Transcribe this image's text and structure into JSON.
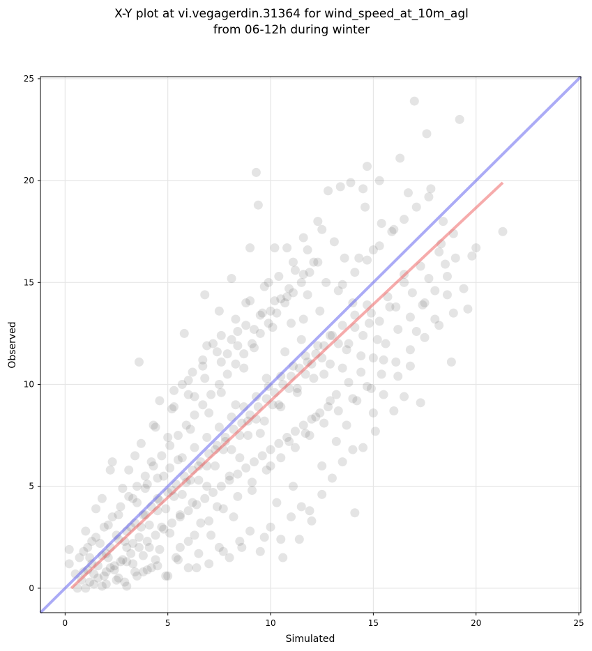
{
  "chart_data": {
    "type": "scatter",
    "title_lines": [
      "X-Y plot at vi.vegagerdin.31364 for wind_speed_at_10m_agl",
      "from 06-12h during winter"
    ],
    "xlabel": "Simulated",
    "ylabel": "Observed",
    "xlim": [
      -1.2,
      25.1
    ],
    "ylim": [
      -1.2,
      25.1
    ],
    "xticks": [
      0,
      5,
      10,
      15,
      20,
      25
    ],
    "yticks": [
      0,
      5,
      10,
      15,
      20,
      25
    ],
    "grid": true,
    "point_color": "#555555",
    "identity_line": {
      "x": [
        -1.2,
        25.1
      ],
      "y": [
        -1.2,
        25.1
      ],
      "color": "#6666ee"
    },
    "fit_line": {
      "x": [
        0.3,
        21.3
      ],
      "y": [
        0.0,
        19.9
      ],
      "color": "#ee6666"
    },
    "points": [
      [
        0.2,
        1.9
      ],
      [
        0.2,
        1.2
      ],
      [
        0.5,
        0.7
      ],
      [
        0.6,
        0.0
      ],
      [
        0.8,
        0.4
      ],
      [
        0.9,
        1.8
      ],
      [
        1.0,
        2.8
      ],
      [
        1.1,
        0.9
      ],
      [
        1.2,
        1.5
      ],
      [
        1.3,
        2.3
      ],
      [
        1.4,
        0.2
      ],
      [
        1.5,
        3.9
      ],
      [
        1.6,
        1.1
      ],
      [
        1.7,
        2.2
      ],
      [
        1.8,
        4.4
      ],
      [
        1.9,
        0.6
      ],
      [
        2.0,
        1.7
      ],
      [
        2.1,
        3.1
      ],
      [
        2.2,
        5.8
      ],
      [
        2.3,
        6.2
      ],
      [
        2.4,
        0.9
      ],
      [
        2.5,
        2.6
      ],
      [
        2.6,
        3.6
      ],
      [
        2.7,
        1.3
      ],
      [
        2.8,
        4.9
      ],
      [
        2.9,
        0.3
      ],
      [
        3.0,
        2.0
      ],
      [
        3.1,
        5.8
      ],
      [
        3.2,
        3.0
      ],
      [
        3.3,
        1.2
      ],
      [
        3.4,
        6.5
      ],
      [
        3.5,
        4.2
      ],
      [
        3.6,
        11.1
      ],
      [
        3.6,
        2.5
      ],
      [
        3.7,
        7.1
      ],
      [
        3.8,
        0.8
      ],
      [
        3.9,
        3.6
      ],
      [
        4.0,
        5.1
      ],
      [
        4.1,
        2.0
      ],
      [
        4.2,
        6.2
      ],
      [
        4.3,
        8.0
      ],
      [
        4.4,
        1.4
      ],
      [
        4.5,
        4.4
      ],
      [
        4.6,
        9.2
      ],
      [
        4.7,
        3.0
      ],
      [
        4.8,
        5.5
      ],
      [
        4.9,
        0.6
      ],
      [
        5.0,
        7.4
      ],
      [
        5.1,
        2.7
      ],
      [
        5.2,
        4.8
      ],
      [
        5.3,
        8.9
      ],
      [
        5.4,
        1.5
      ],
      [
        5.5,
        6.3
      ],
      [
        5.6,
        3.6
      ],
      [
        5.7,
        10.0
      ],
      [
        5.8,
        12.5
      ],
      [
        5.9,
        5.2
      ],
      [
        6.0,
        2.3
      ],
      [
        6.1,
        7.8
      ],
      [
        6.2,
        4.2
      ],
      [
        6.3,
        9.4
      ],
      [
        6.4,
        1.0
      ],
      [
        6.5,
        6.0
      ],
      [
        6.6,
        3.2
      ],
      [
        6.7,
        11.2
      ],
      [
        6.8,
        14.4
      ],
      [
        6.9,
        5.0
      ],
      [
        7.0,
        8.6
      ],
      [
        7.1,
        2.6
      ],
      [
        7.2,
        12.0
      ],
      [
        7.3,
        6.8
      ],
      [
        7.4,
        4.0
      ],
      [
        7.5,
        13.6
      ],
      [
        7.6,
        9.6
      ],
      [
        7.7,
        1.8
      ],
      [
        7.8,
        7.2
      ],
      [
        7.9,
        11.5
      ],
      [
        8.0,
        5.5
      ],
      [
        8.1,
        15.2
      ],
      [
        8.2,
        3.5
      ],
      [
        8.3,
        9.0
      ],
      [
        8.4,
        12.6
      ],
      [
        8.5,
        6.4
      ],
      [
        8.6,
        2.0
      ],
      [
        8.7,
        10.8
      ],
      [
        8.8,
        14.0
      ],
      [
        8.9,
        8.2
      ],
      [
        9.0,
        16.7
      ],
      [
        9.1,
        4.8
      ],
      [
        9.2,
        11.8
      ],
      [
        9.3,
        20.4
      ],
      [
        9.4,
        18.8
      ],
      [
        9.5,
        7.6
      ],
      [
        9.6,
        13.5
      ],
      [
        9.7,
        2.5
      ],
      [
        9.8,
        10.3
      ],
      [
        9.9,
        15.0
      ],
      [
        10.0,
        6.0
      ],
      [
        10.1,
        12.8
      ],
      [
        10.2,
        16.7
      ],
      [
        10.3,
        4.2
      ],
      [
        10.4,
        9.0
      ],
      [
        10.5,
        14.2
      ],
      [
        10.6,
        1.5
      ],
      [
        10.7,
        11.6
      ],
      [
        10.8,
        16.7
      ],
      [
        10.9,
        7.2
      ],
      [
        11.0,
        13.0
      ],
      [
        11.1,
        5.0
      ],
      [
        11.2,
        15.6
      ],
      [
        11.3,
        9.8
      ],
      [
        11.4,
        2.4
      ],
      [
        11.5,
        12.2
      ],
      [
        11.6,
        17.2
      ],
      [
        11.7,
        7.6
      ],
      [
        11.8,
        14.4
      ],
      [
        11.9,
        3.8
      ],
      [
        12.0,
        11.0
      ],
      [
        12.1,
        16.0
      ],
      [
        12.2,
        8.4
      ],
      [
        12.3,
        18.0
      ],
      [
        12.4,
        13.6
      ],
      [
        12.5,
        6.0
      ],
      [
        12.6,
        10.5
      ],
      [
        12.7,
        15.0
      ],
      [
        12.8,
        19.5
      ],
      [
        12.9,
        9.2
      ],
      [
        13.0,
        12.4
      ],
      [
        13.1,
        17.0
      ],
      [
        13.2,
        7.2
      ],
      [
        13.3,
        14.6
      ],
      [
        13.4,
        19.7
      ],
      [
        13.5,
        10.8
      ],
      [
        13.6,
        16.2
      ],
      [
        13.7,
        8.0
      ],
      [
        13.8,
        12.0
      ],
      [
        13.9,
        19.9
      ],
      [
        14.0,
        14.0
      ],
      [
        14.1,
        3.7
      ],
      [
        14.2,
        9.2
      ],
      [
        14.3,
        16.2
      ],
      [
        14.4,
        11.4
      ],
      [
        14.5,
        19.6
      ],
      [
        14.6,
        18.7
      ],
      [
        14.7,
        20.7
      ],
      [
        14.8,
        13.0
      ],
      [
        14.9,
        9.8
      ],
      [
        15.0,
        16.6
      ],
      [
        15.1,
        7.7
      ],
      [
        15.2,
        12.2
      ],
      [
        15.3,
        20.0
      ],
      [
        15.4,
        17.9
      ],
      [
        15.5,
        11.2
      ],
      [
        15.8,
        13.8
      ],
      [
        16.0,
        17.6
      ],
      [
        16.2,
        10.4
      ],
      [
        16.3,
        21.1
      ],
      [
        16.5,
        15.4
      ],
      [
        16.7,
        19.4
      ],
      [
        16.8,
        10.9
      ],
      [
        17.0,
        23.9
      ],
      [
        17.1,
        12.6
      ],
      [
        17.3,
        9.1
      ],
      [
        17.5,
        14.0
      ],
      [
        17.6,
        22.3
      ],
      [
        17.8,
        19.6
      ],
      [
        18.0,
        13.2
      ],
      [
        18.2,
        16.5
      ],
      [
        18.4,
        18.0
      ],
      [
        18.6,
        14.4
      ],
      [
        18.8,
        11.1
      ],
      [
        19.0,
        16.2
      ],
      [
        19.2,
        23.0
      ],
      [
        19.4,
        14.7
      ],
      [
        19.6,
        13.7
      ],
      [
        19.8,
        16.3
      ],
      [
        20.0,
        16.7
      ],
      [
        21.3,
        17.5
      ],
      [
        0.9,
        0.8
      ],
      [
        1.3,
        1.2
      ],
      [
        1.8,
        1.6
      ],
      [
        2.2,
        2.0
      ],
      [
        2.6,
        2.4
      ],
      [
        3.0,
        2.8
      ],
      [
        3.4,
        3.2
      ],
      [
        3.8,
        3.6
      ],
      [
        4.2,
        4.0
      ],
      [
        4.6,
        4.3
      ],
      [
        5.0,
        4.7
      ],
      [
        5.4,
        5.1
      ],
      [
        5.8,
        5.5
      ],
      [
        6.2,
        5.8
      ],
      [
        6.6,
        6.2
      ],
      [
        7.0,
        6.6
      ],
      [
        7.4,
        7.0
      ],
      [
        7.8,
        7.4
      ],
      [
        8.2,
        7.8
      ],
      [
        8.6,
        8.1
      ],
      [
        9.0,
        8.5
      ],
      [
        9.4,
        8.9
      ],
      [
        9.8,
        9.3
      ],
      [
        10.2,
        9.6
      ],
      [
        10.6,
        10.0
      ],
      [
        11.0,
        10.4
      ],
      [
        11.4,
        10.8
      ],
      [
        11.8,
        11.1
      ],
      [
        12.2,
        11.5
      ],
      [
        12.6,
        11.9
      ],
      [
        1.2,
        0.3
      ],
      [
        1.6,
        0.5
      ],
      [
        2.0,
        0.8
      ],
      [
        2.4,
        1.1
      ],
      [
        2.8,
        1.4
      ],
      [
        3.2,
        1.7
      ],
      [
        3.6,
        2.0
      ],
      [
        4.0,
        2.3
      ],
      [
        4.4,
        2.6
      ],
      [
        4.8,
        2.9
      ],
      [
        5.2,
        3.2
      ],
      [
        5.6,
        3.5
      ],
      [
        6.0,
        3.8
      ],
      [
        6.4,
        4.1
      ],
      [
        6.8,
        4.4
      ],
      [
        7.2,
        4.7
      ],
      [
        7.6,
        5.0
      ],
      [
        8.0,
        5.3
      ],
      [
        8.4,
        5.6
      ],
      [
        8.8,
        5.9
      ],
      [
        9.2,
        6.2
      ],
      [
        9.6,
        6.5
      ],
      [
        10.0,
        6.8
      ],
      [
        10.4,
        7.1
      ],
      [
        10.8,
        7.4
      ],
      [
        11.2,
        7.7
      ],
      [
        11.6,
        8.0
      ],
      [
        12.0,
        8.3
      ],
      [
        12.4,
        8.6
      ],
      [
        12.8,
        8.9
      ],
      [
        0.7,
        1.5
      ],
      [
        1.1,
        2.0
      ],
      [
        1.5,
        2.5
      ],
      [
        1.9,
        3.0
      ],
      [
        2.3,
        3.5
      ],
      [
        2.7,
        4.0
      ],
      [
        3.1,
        4.5
      ],
      [
        3.5,
        5.0
      ],
      [
        3.9,
        5.5
      ],
      [
        4.3,
        6.0
      ],
      [
        4.7,
        6.5
      ],
      [
        5.1,
        7.0
      ],
      [
        5.5,
        7.5
      ],
      [
        5.9,
        8.0
      ],
      [
        6.3,
        8.5
      ],
      [
        6.7,
        9.0
      ],
      [
        7.1,
        9.5
      ],
      [
        7.5,
        10.0
      ],
      [
        7.9,
        10.5
      ],
      [
        8.3,
        11.0
      ],
      [
        8.7,
        11.5
      ],
      [
        9.1,
        12.0
      ],
      [
        9.5,
        12.5
      ],
      [
        9.9,
        13.0
      ],
      [
        10.3,
        13.5
      ],
      [
        10.7,
        14.0
      ],
      [
        11.1,
        14.5
      ],
      [
        11.5,
        15.0
      ],
      [
        11.9,
        15.5
      ],
      [
        12.3,
        16.0
      ],
      [
        2.0,
        0.2
      ],
      [
        2.5,
        0.4
      ],
      [
        3.0,
        0.1
      ],
      [
        3.5,
        0.6
      ],
      [
        4.0,
        0.9
      ],
      [
        4.5,
        1.1
      ],
      [
        5.0,
        0.6
      ],
      [
        5.5,
        1.4
      ],
      [
        6.0,
        1.0
      ],
      [
        6.5,
        1.7
      ],
      [
        7.0,
        1.2
      ],
      [
        7.5,
        2.0
      ],
      [
        8.0,
        1.5
      ],
      [
        8.5,
        2.3
      ],
      [
        9.0,
        2.8
      ],
      [
        9.5,
        1.8
      ],
      [
        10.0,
        3.0
      ],
      [
        10.5,
        2.4
      ],
      [
        11.0,
        3.5
      ],
      [
        11.5,
        4.0
      ],
      [
        12.0,
        3.3
      ],
      [
        12.5,
        4.6
      ],
      [
        13.0,
        5.4
      ],
      [
        13.5,
        6.2
      ],
      [
        14.0,
        6.8
      ],
      [
        14.5,
        6.9
      ],
      [
        15.0,
        8.6
      ],
      [
        15.5,
        9.5
      ],
      [
        16.0,
        8.7
      ],
      [
        16.5,
        9.4
      ],
      [
        6.2,
        10.6
      ],
      [
        6.9,
        11.9
      ],
      [
        7.6,
        12.4
      ],
      [
        8.3,
        13.2
      ],
      [
        9.0,
        14.1
      ],
      [
        9.7,
        14.8
      ],
      [
        10.4,
        15.3
      ],
      [
        11.1,
        16.0
      ],
      [
        11.8,
        16.6
      ],
      [
        12.5,
        17.6
      ],
      [
        5.3,
        9.7
      ],
      [
        6.0,
        10.2
      ],
      [
        6.7,
        10.9
      ],
      [
        7.4,
        11.6
      ],
      [
        8.1,
        12.2
      ],
      [
        8.8,
        12.9
      ],
      [
        9.5,
        13.4
      ],
      [
        10.2,
        14.1
      ],
      [
        10.9,
        14.7
      ],
      [
        11.6,
        15.4
      ],
      [
        13.2,
        9.5
      ],
      [
        13.8,
        10.1
      ],
      [
        14.4,
        10.6
      ],
      [
        15.0,
        11.3
      ],
      [
        15.6,
        12.0
      ],
      [
        16.2,
        12.7
      ],
      [
        16.8,
        13.3
      ],
      [
        17.4,
        13.9
      ],
      [
        18.0,
        14.6
      ],
      [
        18.6,
        15.3
      ],
      [
        13.5,
        14.9
      ],
      [
        14.1,
        15.5
      ],
      [
        14.7,
        16.1
      ],
      [
        15.3,
        16.8
      ],
      [
        15.9,
        17.5
      ],
      [
        16.5,
        18.1
      ],
      [
        17.1,
        18.7
      ],
      [
        17.7,
        19.2
      ],
      [
        18.3,
        16.9
      ],
      [
        18.9,
        17.4
      ],
      [
        3.3,
        2.2
      ],
      [
        4.1,
        3.1
      ],
      [
        4.9,
        3.9
      ],
      [
        5.7,
        4.6
      ],
      [
        6.5,
        5.3
      ],
      [
        7.3,
        6.0
      ],
      [
        8.1,
        6.8
      ],
      [
        8.9,
        7.5
      ],
      [
        9.7,
        8.2
      ],
      [
        10.5,
        8.9
      ],
      [
        11.3,
        9.6
      ],
      [
        12.1,
        10.3
      ],
      [
        12.9,
        11.0
      ],
      [
        13.7,
        11.7
      ],
      [
        14.5,
        12.4
      ],
      [
        15.3,
        13.1
      ],
      [
        16.1,
        13.8
      ],
      [
        16.9,
        14.5
      ],
      [
        17.7,
        15.2
      ],
      [
        18.5,
        15.9
      ],
      [
        2.1,
        1.5
      ],
      [
        2.9,
        2.3
      ],
      [
        3.7,
        3.0
      ],
      [
        4.5,
        3.8
      ],
      [
        5.3,
        4.5
      ],
      [
        6.1,
        5.3
      ],
      [
        6.9,
        6.0
      ],
      [
        7.7,
        6.8
      ],
      [
        8.5,
        7.5
      ],
      [
        9.3,
        8.3
      ],
      [
        10.1,
        9.0
      ],
      [
        10.9,
        9.8
      ],
      [
        11.7,
        10.5
      ],
      [
        12.5,
        11.3
      ],
      [
        13.3,
        12.0
      ],
      [
        14.1,
        12.8
      ],
      [
        14.9,
        13.5
      ],
      [
        15.7,
        14.3
      ],
      [
        16.5,
        15.0
      ],
      [
        17.3,
        15.8
      ],
      [
        4.4,
        7.9
      ],
      [
        5.2,
        8.8
      ],
      [
        6.0,
        9.5
      ],
      [
        6.8,
        10.3
      ],
      [
        7.6,
        11.1
      ],
      [
        8.4,
        11.9
      ],
      [
        9.2,
        12.7
      ],
      [
        10.0,
        13.6
      ],
      [
        10.8,
        14.3
      ],
      [
        11.6,
        13.2
      ],
      [
        5.6,
        2.0
      ],
      [
        6.3,
        2.6
      ],
      [
        7.0,
        3.3
      ],
      [
        7.7,
        3.9
      ],
      [
        8.4,
        4.5
      ],
      [
        9.1,
        5.2
      ],
      [
        9.8,
        5.8
      ],
      [
        10.5,
        6.4
      ],
      [
        11.2,
        6.9
      ],
      [
        11.9,
        7.5
      ],
      [
        12.6,
        8.1
      ],
      [
        13.3,
        8.7
      ],
      [
        14.0,
        9.3
      ],
      [
        14.7,
        9.9
      ],
      [
        15.4,
        10.5
      ],
      [
        16.1,
        11.1
      ],
      [
        16.8,
        11.7
      ],
      [
        17.5,
        12.3
      ],
      [
        18.2,
        12.9
      ],
      [
        18.9,
        13.5
      ],
      [
        1.0,
        0.0
      ],
      [
        1.4,
        0.7
      ],
      [
        1.8,
        0.1
      ],
      [
        2.2,
        1.0
      ],
      [
        2.6,
        0.5
      ],
      [
        3.0,
        1.3
      ],
      [
        3.4,
        0.8
      ],
      [
        3.8,
        1.6
      ],
      [
        4.2,
        1.0
      ],
      [
        4.6,
        1.9
      ],
      [
        3.3,
        4.4
      ],
      [
        3.9,
        4.9
      ],
      [
        4.5,
        5.4
      ],
      [
        5.1,
        5.9
      ],
      [
        5.7,
        6.4
      ],
      [
        6.3,
        6.9
      ],
      [
        6.9,
        7.4
      ],
      [
        7.5,
        7.9
      ],
      [
        8.1,
        8.4
      ],
      [
        8.7,
        8.9
      ],
      [
        9.3,
        9.4
      ],
      [
        9.9,
        9.9
      ],
      [
        10.5,
        10.4
      ],
      [
        11.1,
        10.9
      ],
      [
        11.7,
        11.4
      ],
      [
        12.3,
        11.9
      ],
      [
        12.9,
        12.4
      ],
      [
        13.5,
        12.9
      ],
      [
        14.1,
        13.4
      ],
      [
        14.7,
        13.9
      ]
    ]
  }
}
